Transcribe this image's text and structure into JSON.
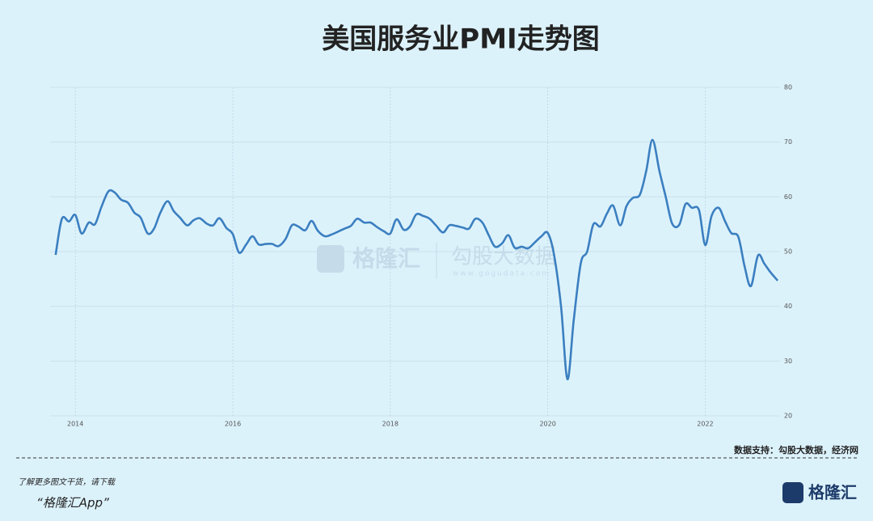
{
  "chart_data": {
    "type": "line",
    "title": "美国服务业PMI走势图",
    "source": "数据支持：勾股大数据，经济网",
    "footer": [
      "了解更多图文干货，请下载",
      "“格隆汇App”"
    ],
    "logo": "格隆汇",
    "watermark": [
      "格隆汇",
      "勾股大数据",
      "www.gogudata.com"
    ],
    "x": [
      2013.75,
      2013.83,
      2013.92,
      2014.0,
      2014.08,
      2014.17,
      2014.25,
      2014.33,
      2014.42,
      2014.5,
      2014.58,
      2014.67,
      2014.75,
      2014.83,
      2014.92,
      2015.0,
      2015.08,
      2015.17,
      2015.25,
      2015.33,
      2015.42,
      2015.5,
      2015.58,
      2015.67,
      2015.75,
      2015.83,
      2015.92,
      2016.0,
      2016.08,
      2016.17,
      2016.25,
      2016.33,
      2016.42,
      2016.5,
      2016.58,
      2016.67,
      2016.75,
      2016.83,
      2016.92,
      2017.0,
      2017.08,
      2017.17,
      2017.25,
      2017.33,
      2017.42,
      2017.5,
      2017.58,
      2017.67,
      2017.75,
      2017.83,
      2017.92,
      2018.0,
      2018.08,
      2018.17,
      2018.25,
      2018.33,
      2018.42,
      2018.5,
      2018.58,
      2018.67,
      2018.75,
      2018.83,
      2018.92,
      2019.0,
      2019.08,
      2019.17,
      2019.25,
      2019.33,
      2019.42,
      2019.5,
      2019.58,
      2019.67,
      2019.75,
      2019.83,
      2019.92,
      2020.0,
      2020.08,
      2020.17,
      2020.25,
      2020.33,
      2020.42,
      2020.5,
      2020.58,
      2020.67,
      2020.75,
      2020.83,
      2020.92,
      2021.0,
      2021.08,
      2021.17,
      2021.25,
      2021.33,
      2021.42,
      2021.5,
      2021.58,
      2021.67,
      2021.75,
      2021.83,
      2021.92,
      2022.0,
      2022.08,
      2022.17,
      2022.25,
      2022.33,
      2022.42,
      2022.5,
      2022.58,
      2022.67,
      2022.75,
      2022.83,
      2022.92
    ],
    "series": [
      {
        "name": "美国服务业PMI",
        "color": "#3b7fc0",
        "values": [
          49.4,
          56.0,
          55.5,
          56.7,
          53.3,
          55.3,
          55.0,
          58.1,
          61.0,
          60.8,
          59.5,
          58.9,
          57.1,
          56.2,
          53.3,
          54.2,
          57.1,
          59.2,
          57.4,
          56.2,
          54.8,
          55.7,
          56.1,
          55.1,
          54.8,
          56.1,
          54.3,
          53.2,
          49.8,
          51.3,
          52.8,
          51.3,
          51.4,
          51.4,
          51.0,
          52.3,
          54.8,
          54.6,
          53.9,
          55.6,
          53.8,
          52.8,
          53.1,
          53.6,
          54.2,
          54.7,
          56.0,
          55.3,
          55.3,
          54.5,
          53.7,
          53.3,
          55.9,
          54.0,
          54.6,
          56.8,
          56.5,
          56.0,
          54.8,
          53.5,
          54.8,
          54.7,
          54.4,
          54.2,
          56.0,
          55.3,
          53.0,
          50.9,
          51.5,
          53.0,
          50.7,
          50.9,
          50.6,
          51.6,
          52.8,
          53.4,
          49.4,
          39.8,
          26.7,
          37.5,
          47.9,
          50.0,
          55.0,
          54.6,
          56.9,
          58.4,
          54.8,
          58.3,
          59.8,
          60.4,
          64.7,
          70.4,
          64.6,
          59.9,
          55.1,
          54.9,
          58.7,
          58.0,
          57.6,
          51.2,
          56.5,
          58.0,
          55.6,
          53.4,
          52.7,
          47.3,
          43.7,
          49.3,
          47.8,
          46.2,
          44.7
        ]
      }
    ],
    "xlim": [
      2013.68,
      2022.95
    ],
    "xticks": [
      2014,
      2016,
      2018,
      2020,
      2022
    ],
    "ylim": [
      20,
      80
    ],
    "yticks": [
      20,
      30,
      40,
      50,
      60,
      70,
      80
    ],
    "grid": true
  }
}
